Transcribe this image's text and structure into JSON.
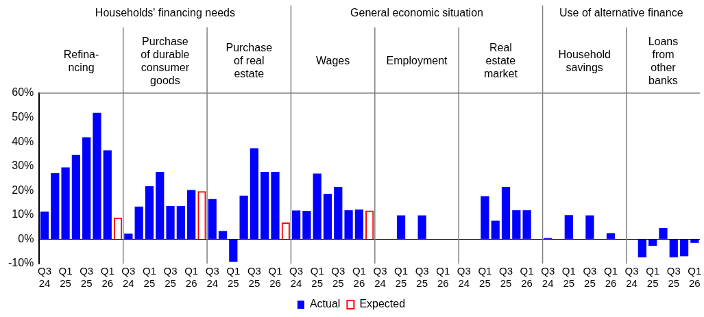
{
  "chart_data": {
    "type": "bar",
    "categories": [
      "Q3 24",
      null,
      "Q1 25",
      null,
      "Q3 25",
      null,
      "Q1 26",
      null,
      "Q3 24",
      null,
      "Q1 25",
      null,
      "Q3 25",
      null,
      "Q1 26",
      null,
      "Q3 24",
      null,
      "Q1 25",
      null,
      "Q3 25",
      null,
      "Q1 26",
      null,
      "Q3 24",
      null,
      "Q1 25",
      null,
      "Q3 25",
      null,
      "Q1 26",
      null,
      "Q3 24",
      null,
      "Q1 25",
      null,
      "Q3 25",
      null,
      "Q1 26",
      null,
      "Q3 24",
      null,
      "Q1 25",
      null,
      "Q3 25",
      null,
      "Q1 26",
      null,
      "Q3 24",
      null,
      "Q1 25",
      null,
      "Q3 25",
      null,
      "Q1 26",
      null,
      "Q3 24",
      null,
      "Q1 25",
      null,
      "Q3 25",
      null,
      "Q1 26"
    ],
    "series": [
      {
        "name": "Actual",
        "color": "#0000ff",
        "values": [
          11.4,
          27.1,
          29.5,
          34.7,
          41.9,
          51.9,
          36.5,
          null,
          2.3,
          13.4,
          21.8,
          27.7,
          13.6,
          13.6,
          20.2,
          null,
          16.5,
          3.4,
          -9.3,
          17.9,
          37.4,
          27.7,
          27.7,
          null,
          11.8,
          11.6,
          27.0,
          18.7,
          21.5,
          11.9,
          12.2,
          null,
          0,
          0,
          9.8,
          0,
          9.8,
          0,
          0,
          null,
          0,
          0,
          17.7,
          7.6,
          21.5,
          11.9,
          11.9,
          null,
          0.5,
          0,
          9.9,
          0,
          9.8,
          0,
          2.5,
          null,
          0,
          -7.4,
          -2.7,
          4.6,
          -7.4,
          -7.0,
          -1.5
        ]
      },
      {
        "name": "Expected",
        "color": "#ff0000",
        "values": [
          null,
          null,
          null,
          null,
          null,
          null,
          null,
          8.9,
          null,
          null,
          null,
          null,
          null,
          null,
          null,
          19.7,
          null,
          null,
          null,
          null,
          null,
          null,
          null,
          6.9,
          null,
          null,
          null,
          null,
          null,
          null,
          null,
          11.8,
          null,
          null,
          null,
          null,
          null,
          null,
          null,
          null,
          null,
          null,
          null,
          null,
          null,
          null,
          null,
          null,
          null,
          null,
          null,
          null,
          null,
          null,
          null,
          null,
          null,
          null,
          null,
          null,
          null,
          null,
          null
        ]
      }
    ],
    "ylim": [
      -10,
      60
    ],
    "yticks": [
      {
        "value": -10,
        "label": "-10%"
      },
      {
        "value": 0,
        "label": "0%"
      },
      {
        "value": 10,
        "label": "10%"
      },
      {
        "value": 20,
        "label": "20%"
      },
      {
        "value": 30,
        "label": "30%"
      },
      {
        "value": 40,
        "label": "40%"
      },
      {
        "value": 50,
        "label": "50%"
      },
      {
        "value": 60,
        "label": "60%"
      }
    ],
    "grid": false,
    "legend": "bottom",
    "annotations": [
      "Households' financing needs",
      "General economic situation",
      "Use of alternative finance",
      "Refina-\nncing",
      "Purchase\nof durable\nconsumer\ngoods",
      "Purchase\nof real\nestate",
      "Wages",
      "Employment",
      "Real\nestate\nmarket",
      "Household\nsavings",
      "Loans\nfrom\nother\nbanks"
    ]
  }
}
